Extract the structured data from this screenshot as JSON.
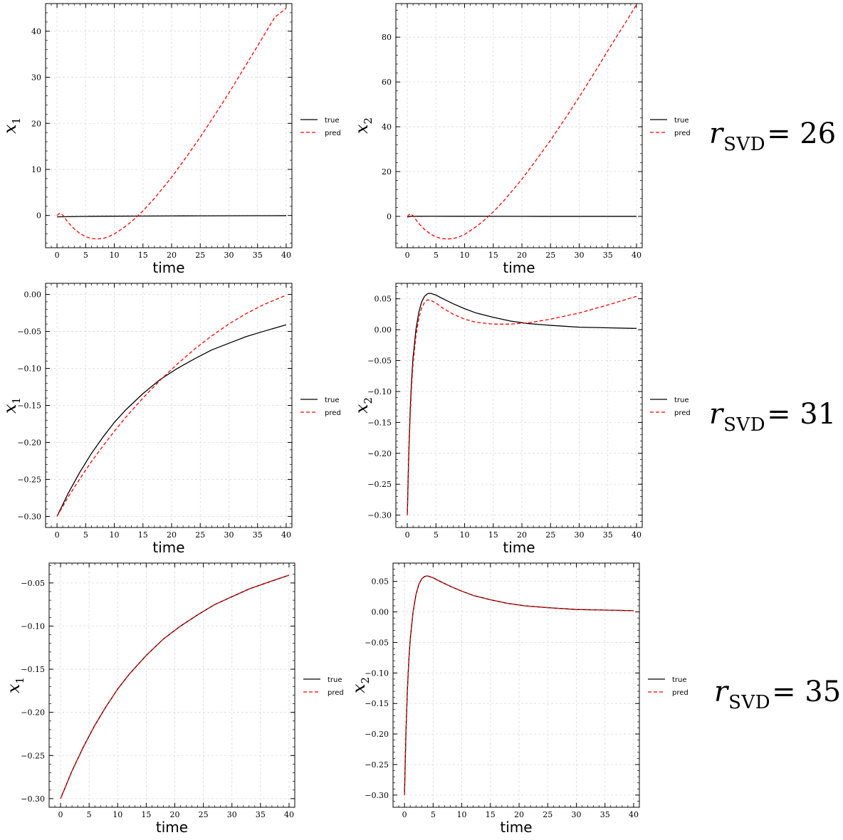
{
  "legend": {
    "true_label": "true",
    "pred_label": "pred"
  },
  "colors": {
    "true": "#000000",
    "pred": "#ff0000",
    "grid": "#d9d9d9"
  },
  "rows": [
    {
      "r_label": {
        "symbol": "r",
        "sub": "SVD",
        "eq": "=",
        "value": "26"
      }
    },
    {
      "r_label": {
        "symbol": "r",
        "sub": "SVD",
        "eq": "=",
        "value": "31"
      }
    },
    {
      "r_label": {
        "symbol": "r",
        "sub": "SVD",
        "eq": "=",
        "value": "35"
      }
    }
  ],
  "chart_data": [
    {
      "type": "line",
      "xlabel": "time",
      "ylabel": "x1",
      "xlim": [
        -2,
        41
      ],
      "ylim": [
        -7,
        46
      ],
      "xticks": [
        0,
        5,
        10,
        15,
        20,
        25,
        30,
        35,
        40
      ],
      "yticks": [
        0,
        10,
        20,
        30,
        40
      ],
      "xtick_labels": [
        "0",
        "5",
        "10",
        "15",
        "20",
        "25",
        "30",
        "35",
        "40"
      ],
      "ytick_labels": [
        "0",
        "10",
        "20",
        "30",
        "40"
      ],
      "series": [
        {
          "name": "true",
          "style": "solid",
          "x": [
            0,
            5,
            10,
            15,
            20,
            25,
            30,
            35,
            40
          ],
          "y": [
            -0.3,
            -0.2,
            -0.15,
            -0.12,
            -0.1,
            -0.08,
            -0.06,
            -0.05,
            -0.04
          ]
        },
        {
          "name": "pred",
          "style": "dashed",
          "x": [
            0,
            0.5,
            1,
            1.5,
            2,
            3,
            4,
            5,
            6,
            7,
            8,
            9,
            10,
            11,
            12,
            13,
            14,
            15,
            17,
            20,
            22,
            25,
            28,
            30,
            33,
            35,
            38,
            40
          ],
          "y": [
            0,
            0.5,
            0.1,
            -0.8,
            -1.6,
            -2.9,
            -3.9,
            -4.6,
            -5.0,
            -5.1,
            -5.0,
            -4.6,
            -4.0,
            -3.2,
            -2.3,
            -1.3,
            -0.2,
            1.0,
            3.7,
            8.3,
            11.7,
            17.0,
            22.7,
            26.6,
            32.7,
            36.8,
            43.0,
            45.0
          ]
        }
      ]
    },
    {
      "type": "line",
      "xlabel": "time",
      "ylabel": "x2",
      "xlim": [
        -2,
        41
      ],
      "ylim": [
        -14,
        95
      ],
      "xticks": [
        0,
        5,
        10,
        15,
        20,
        25,
        30,
        35,
        40
      ],
      "yticks": [
        0,
        20,
        40,
        60,
        80
      ],
      "xtick_labels": [
        "0",
        "5",
        "10",
        "15",
        "20",
        "25",
        "30",
        "35",
        "40"
      ],
      "ytick_labels": [
        "0",
        "20",
        "40",
        "60",
        "80"
      ],
      "series": [
        {
          "name": "true",
          "style": "solid",
          "x": [
            0,
            0.5,
            1,
            2,
            4,
            10,
            20,
            30,
            40
          ],
          "y": [
            -0.3,
            0.0,
            0.03,
            0.05,
            0.06,
            0.035,
            0.012,
            0.005,
            0.002
          ]
        },
        {
          "name": "pred",
          "style": "dashed",
          "x": [
            0,
            0.5,
            1,
            1.5,
            2,
            3,
            4,
            5,
            6,
            7,
            8,
            9,
            10,
            11,
            12,
            13,
            14,
            15,
            17,
            20,
            22,
            25,
            28,
            30,
            33,
            35,
            38,
            40
          ],
          "y": [
            0,
            1.2,
            0.3,
            -1.5,
            -3.2,
            -5.8,
            -7.8,
            -9.2,
            -9.9,
            -10.1,
            -9.9,
            -9.2,
            -8.0,
            -6.4,
            -4.6,
            -2.6,
            -0.4,
            2.0,
            7.4,
            16.6,
            23.4,
            34.0,
            45.4,
            53.3,
            65.5,
            74.0,
            86.2,
            94.5
          ]
        }
      ]
    },
    {
      "type": "line",
      "xlabel": "time",
      "ylabel": "x1",
      "xlim": [
        -2,
        41
      ],
      "ylim": [
        -0.315,
        0.015
      ],
      "xticks": [
        0,
        5,
        10,
        15,
        20,
        25,
        30,
        35,
        40
      ],
      "yticks": [
        -0.3,
        -0.25,
        -0.2,
        -0.15,
        -0.1,
        -0.05,
        0.0
      ],
      "xtick_labels": [
        "0",
        "5",
        "10",
        "15",
        "20",
        "25",
        "30",
        "35",
        "40"
      ],
      "ytick_labels": [
        "−0.30",
        "−0.25",
        "−0.20",
        "−0.15",
        "−0.10",
        "−0.05",
        "0.00"
      ],
      "series": [
        {
          "name": "true",
          "style": "solid",
          "x": [
            0,
            2,
            4,
            6,
            8,
            10,
            12,
            15,
            18,
            21,
            24,
            27,
            30,
            33,
            36,
            40
          ],
          "y": [
            -0.3,
            -0.268,
            -0.24,
            -0.215,
            -0.193,
            -0.173,
            -0.156,
            -0.134,
            -0.115,
            -0.1,
            -0.087,
            -0.075,
            -0.066,
            -0.057,
            -0.05,
            -0.041
          ]
        },
        {
          "name": "pred",
          "style": "dashed",
          "x": [
            0,
            2,
            4,
            6,
            8,
            10,
            12,
            15,
            18,
            21,
            24,
            27,
            30,
            33,
            36,
            40
          ],
          "y": [
            -0.3,
            -0.273,
            -0.249,
            -0.226,
            -0.205,
            -0.185,
            -0.166,
            -0.14,
            -0.116,
            -0.094,
            -0.074,
            -0.056,
            -0.04,
            -0.026,
            -0.014,
            -0.001
          ]
        }
      ]
    },
    {
      "type": "line",
      "xlabel": "time",
      "ylabel": "x2",
      "xlim": [
        -2,
        41
      ],
      "ylim": [
        -0.32,
        0.075
      ],
      "xticks": [
        0,
        5,
        10,
        15,
        20,
        25,
        30,
        35,
        40
      ],
      "yticks": [
        -0.3,
        -0.25,
        -0.2,
        -0.15,
        -0.1,
        -0.05,
        0.0,
        0.05
      ],
      "xtick_labels": [
        "0",
        "5",
        "10",
        "15",
        "20",
        "25",
        "30",
        "35",
        "40"
      ],
      "ytick_labels": [
        "−0.30",
        "−0.25",
        "−0.20",
        "−0.15",
        "−0.10",
        "−0.05",
        "0.00",
        "0.05"
      ],
      "series": [
        {
          "name": "true",
          "style": "solid",
          "x": [
            0,
            0.25,
            0.5,
            0.75,
            1,
            1.5,
            2,
            2.5,
            3,
            3.5,
            4,
            5,
            6,
            8,
            10,
            12,
            15,
            18,
            21,
            25,
            30,
            35,
            40
          ],
          "y": [
            -0.3,
            -0.2,
            -0.13,
            -0.08,
            -0.045,
            0.0,
            0.028,
            0.045,
            0.054,
            0.058,
            0.059,
            0.056,
            0.051,
            0.042,
            0.034,
            0.027,
            0.02,
            0.014,
            0.01,
            0.007,
            0.004,
            0.003,
            0.002
          ]
        },
        {
          "name": "pred",
          "style": "dashed",
          "x": [
            0,
            0.25,
            0.5,
            0.75,
            1,
            1.5,
            2,
            2.5,
            3,
            3.5,
            4,
            5,
            6,
            8,
            10,
            12,
            15,
            18,
            21,
            25,
            30,
            35,
            40
          ],
          "y": [
            -0.3,
            -0.205,
            -0.14,
            -0.09,
            -0.055,
            -0.01,
            0.018,
            0.035,
            0.044,
            0.048,
            0.048,
            0.043,
            0.036,
            0.025,
            0.017,
            0.012,
            0.009,
            0.009,
            0.011,
            0.017,
            0.027,
            0.04,
            0.054
          ]
        }
      ]
    },
    {
      "type": "line",
      "xlabel": "time",
      "ylabel": "x1",
      "xlim": [
        -2,
        41
      ],
      "ylim": [
        -0.31,
        -0.027
      ],
      "xticks": [
        0,
        5,
        10,
        15,
        20,
        25,
        30,
        35,
        40
      ],
      "yticks": [
        -0.3,
        -0.25,
        -0.2,
        -0.15,
        -0.1,
        -0.05
      ],
      "xtick_labels": [
        "0",
        "5",
        "10",
        "15",
        "20",
        "25",
        "30",
        "35",
        "40"
      ],
      "ytick_labels": [
        "−0.30",
        "−0.25",
        "−0.20",
        "−0.15",
        "−0.10",
        "−0.05"
      ],
      "series": [
        {
          "name": "true",
          "style": "solid",
          "x": [
            0,
            2,
            4,
            6,
            8,
            10,
            12,
            15,
            18,
            21,
            24,
            27,
            30,
            33,
            36,
            40
          ],
          "y": [
            -0.3,
            -0.268,
            -0.24,
            -0.215,
            -0.193,
            -0.173,
            -0.156,
            -0.134,
            -0.115,
            -0.1,
            -0.087,
            -0.075,
            -0.066,
            -0.057,
            -0.05,
            -0.041
          ]
        },
        {
          "name": "pred",
          "style": "dashed",
          "x": [
            0,
            2,
            4,
            6,
            8,
            10,
            12,
            15,
            18,
            21,
            24,
            27,
            30,
            33,
            36,
            40
          ],
          "y": [
            -0.3,
            -0.268,
            -0.24,
            -0.215,
            -0.193,
            -0.173,
            -0.156,
            -0.134,
            -0.115,
            -0.1,
            -0.087,
            -0.075,
            -0.066,
            -0.057,
            -0.05,
            -0.041
          ]
        }
      ]
    },
    {
      "type": "line",
      "xlabel": "time",
      "ylabel": "x2",
      "xlim": [
        -2,
        41
      ],
      "ylim": [
        -0.32,
        0.08
      ],
      "xticks": [
        0,
        5,
        10,
        15,
        20,
        25,
        30,
        35,
        40
      ],
      "yticks": [
        -0.3,
        -0.25,
        -0.2,
        -0.15,
        -0.1,
        -0.05,
        0.0,
        0.05
      ],
      "xtick_labels": [
        "0",
        "5",
        "10",
        "15",
        "20",
        "25",
        "30",
        "35",
        "40"
      ],
      "ytick_labels": [
        "−0.30",
        "−0.25",
        "−0.20",
        "−0.15",
        "−0.10",
        "−0.05",
        "0.00",
        "0.05"
      ],
      "series": [
        {
          "name": "true",
          "style": "solid",
          "x": [
            0,
            0.25,
            0.5,
            0.75,
            1,
            1.5,
            2,
            2.5,
            3,
            3.5,
            4,
            5,
            6,
            8,
            10,
            12,
            15,
            18,
            21,
            25,
            30,
            35,
            40
          ],
          "y": [
            -0.3,
            -0.2,
            -0.13,
            -0.08,
            -0.045,
            0.0,
            0.028,
            0.045,
            0.054,
            0.058,
            0.059,
            0.056,
            0.051,
            0.042,
            0.034,
            0.027,
            0.02,
            0.014,
            0.01,
            0.007,
            0.004,
            0.003,
            0.002
          ]
        },
        {
          "name": "pred",
          "style": "dashed",
          "x": [
            0,
            0.25,
            0.5,
            0.75,
            1,
            1.5,
            2,
            2.5,
            3,
            3.5,
            4,
            5,
            6,
            8,
            10,
            12,
            15,
            18,
            21,
            25,
            30,
            35,
            40
          ],
          "y": [
            -0.3,
            -0.2,
            -0.13,
            -0.08,
            -0.045,
            0.0,
            0.028,
            0.045,
            0.054,
            0.058,
            0.059,
            0.056,
            0.051,
            0.042,
            0.034,
            0.027,
            0.02,
            0.014,
            0.01,
            0.007,
            0.004,
            0.003,
            0.002
          ]
        }
      ]
    }
  ]
}
